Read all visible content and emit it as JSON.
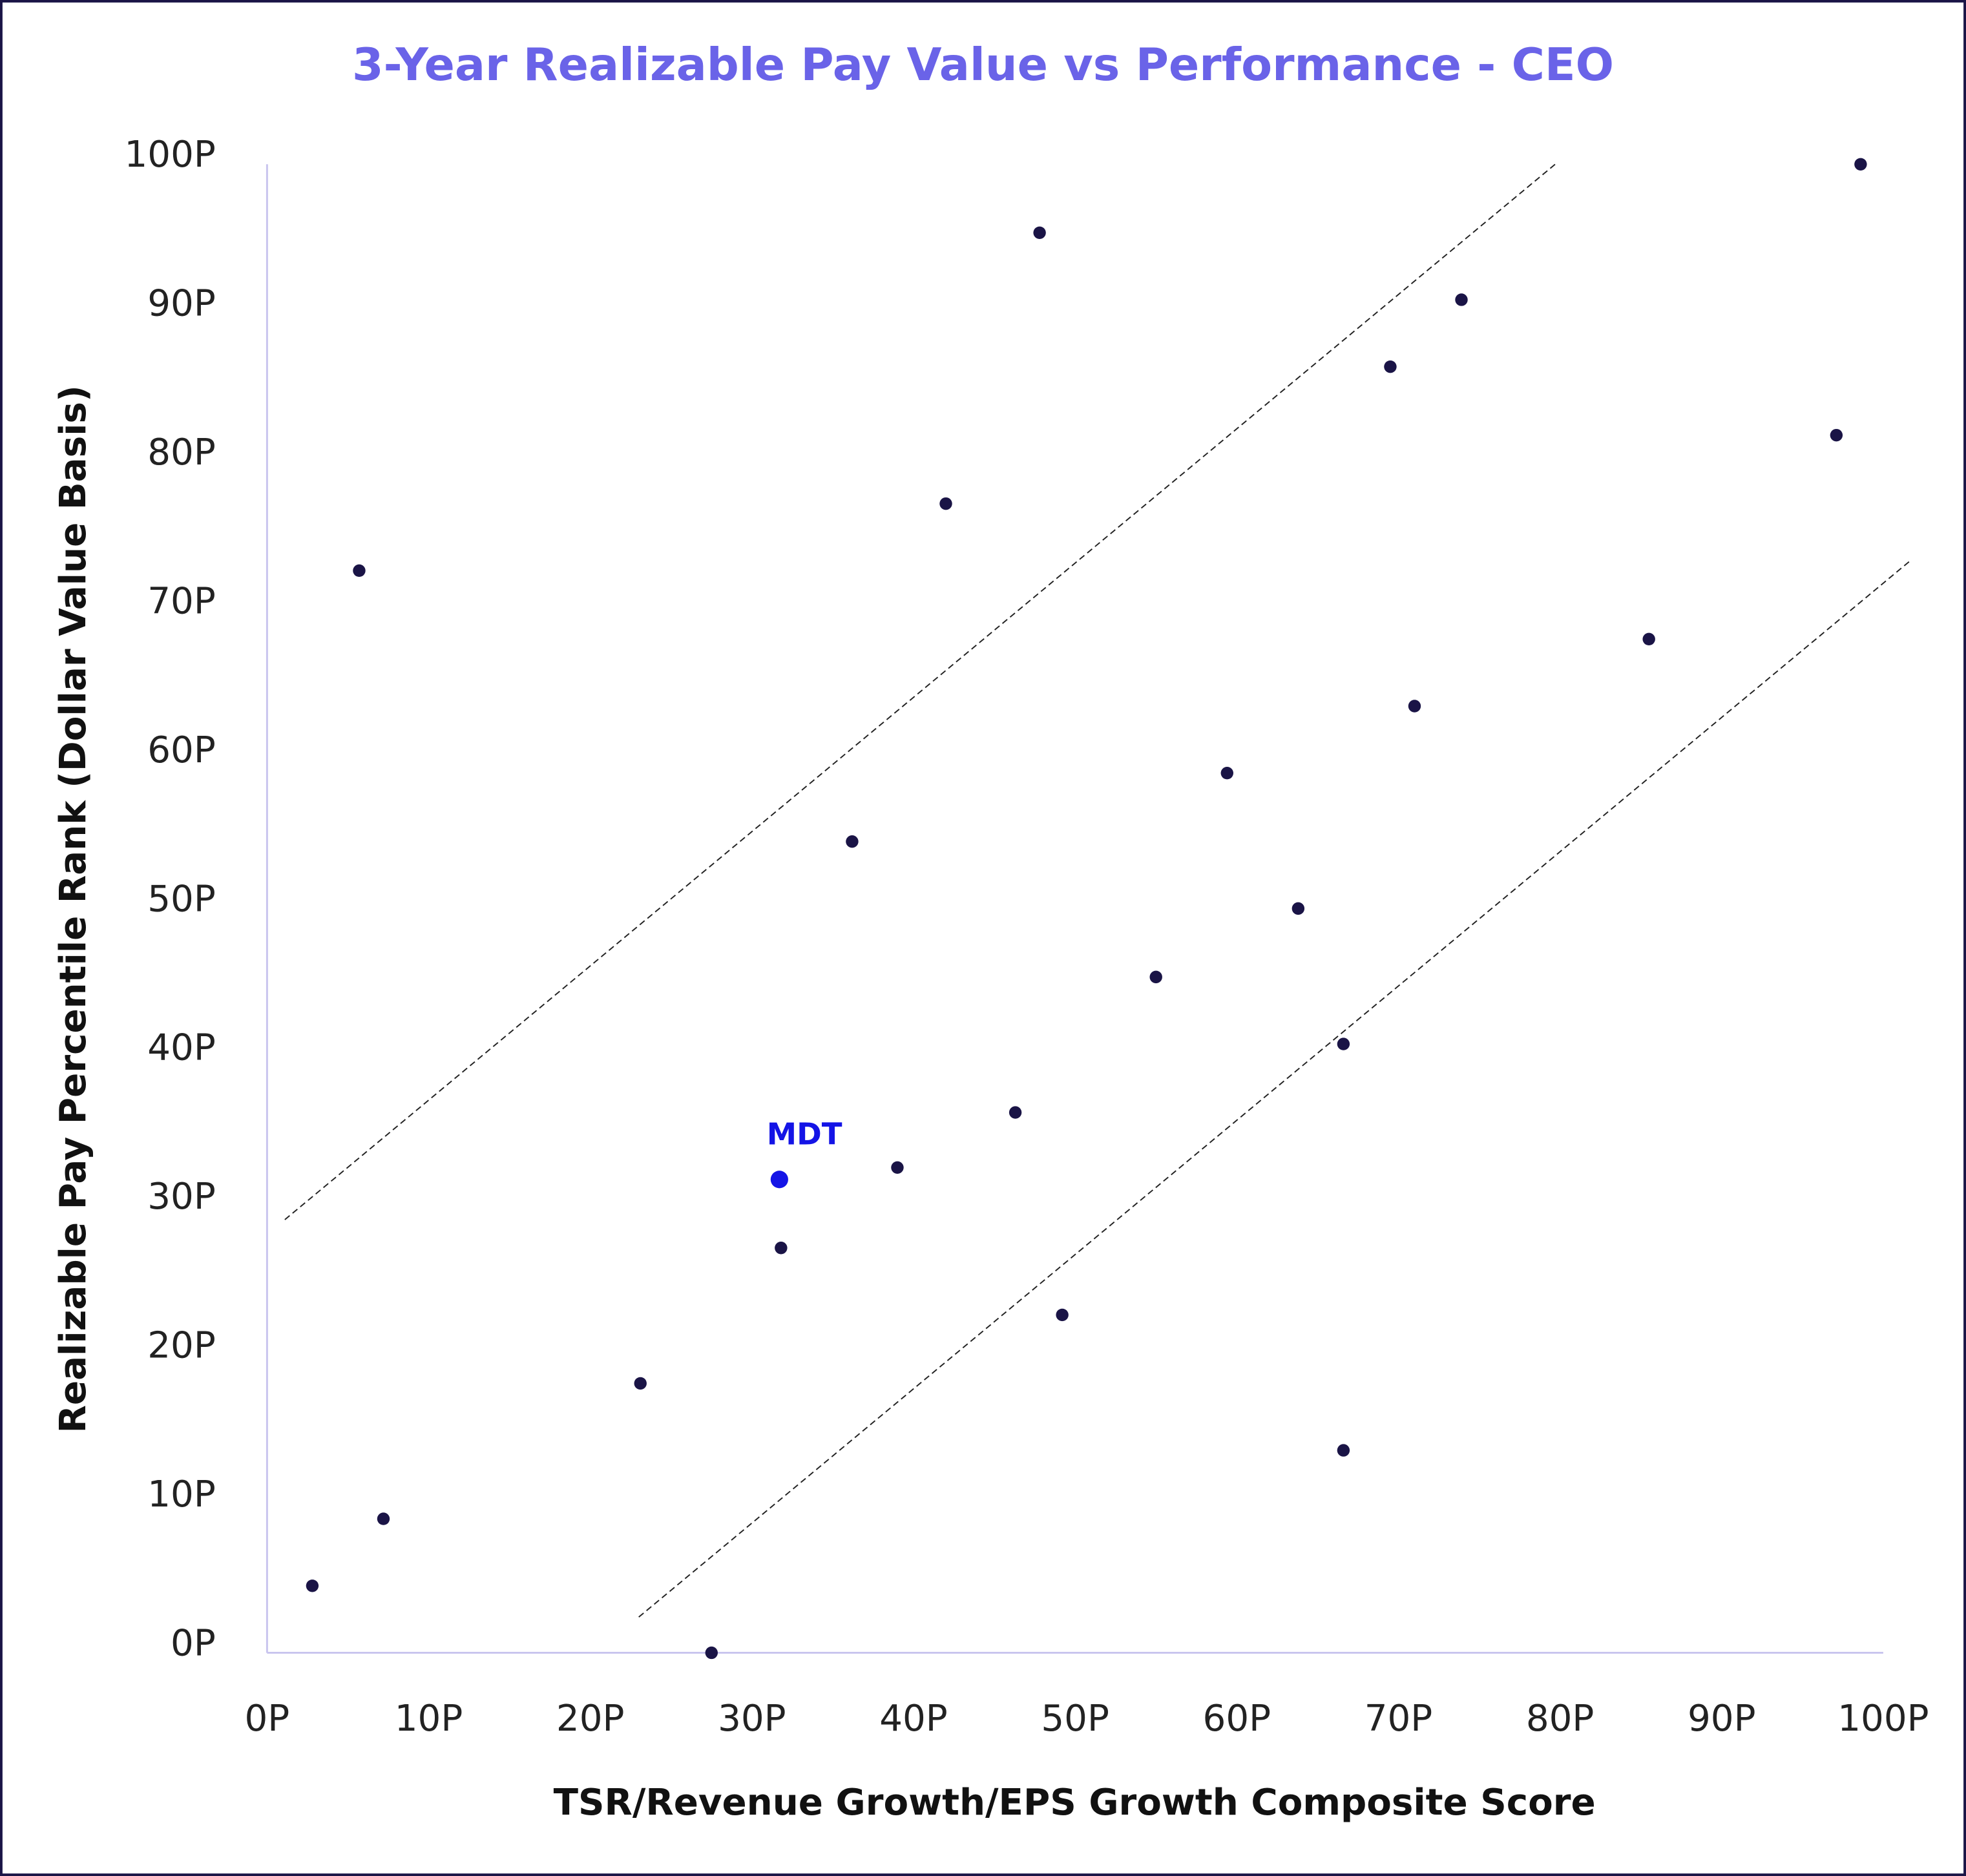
{
  "chart_data": {
    "type": "scatter",
    "title": "3-Year Realizable Pay Value vs Performance - CEO",
    "xlabel": "TSR/Revenue Growth/EPS Growth Composite Score",
    "ylabel": "Realizable Pay Percentile Rank (Dollar Value Basis)",
    "xlim": [
      0,
      100
    ],
    "ylim": [
      0,
      100
    ],
    "xticks": [
      "0P",
      "10P",
      "20P",
      "30P",
      "40P",
      "50P",
      "60P",
      "70P",
      "80P",
      "90P",
      "100P"
    ],
    "yticks": [
      "0P",
      "10P",
      "20P",
      "30P",
      "40P",
      "50P",
      "60P",
      "70P",
      "80P",
      "90P",
      "100P"
    ],
    "grid": false,
    "colors": {
      "title": "#6a63e8",
      "points": "#1a1446",
      "highlight": "#1414e6",
      "axis": "#c8c4ee",
      "frame": "#1a1446"
    },
    "points": [
      {
        "x": 2.8,
        "y": 4.5
      },
      {
        "x": 7.2,
        "y": 9.0
      },
      {
        "x": 5.7,
        "y": 72.7
      },
      {
        "x": 23.1,
        "y": 18.1
      },
      {
        "x": 27.5,
        "y": 0
      },
      {
        "x": 31.8,
        "y": 27.2
      },
      {
        "x": 36.2,
        "y": 54.5
      },
      {
        "x": 39.0,
        "y": 32.6
      },
      {
        "x": 42.0,
        "y": 77.2
      },
      {
        "x": 46.3,
        "y": 36.3
      },
      {
        "x": 47.8,
        "y": 95.4
      },
      {
        "x": 49.2,
        "y": 22.7
      },
      {
        "x": 55.0,
        "y": 45.4
      },
      {
        "x": 59.4,
        "y": 59.1
      },
      {
        "x": 63.8,
        "y": 50.0
      },
      {
        "x": 66.6,
        "y": 40.9
      },
      {
        "x": 66.6,
        "y": 13.6
      },
      {
        "x": 69.5,
        "y": 86.4
      },
      {
        "x": 71.0,
        "y": 63.6
      },
      {
        "x": 73.9,
        "y": 90.9
      },
      {
        "x": 85.5,
        "y": 68.1
      },
      {
        "x": 97.1,
        "y": 81.8
      },
      {
        "x": 98.6,
        "y": 100
      }
    ],
    "highlight": {
      "label": "MDT",
      "x": 31.7,
      "y": 31.8
    },
    "reference_lines": [
      {
        "style": "dashed",
        "from": {
          "x": 1.1,
          "y": 29.1
        },
        "to": {
          "x": 79.7,
          "y": 100
        }
      },
      {
        "style": "dashed",
        "from": {
          "x": 23.0,
          "y": 2.4
        },
        "to": {
          "x": 101.6,
          "y": 73.3
        }
      }
    ]
  }
}
